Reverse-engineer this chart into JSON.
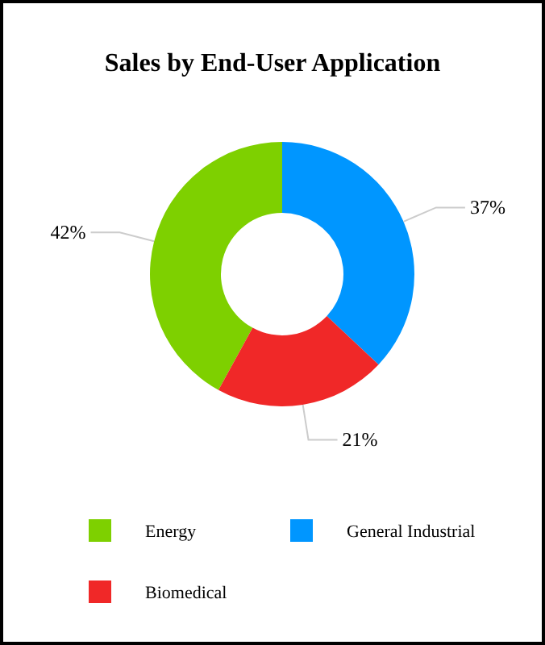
{
  "chart_data": {
    "type": "donut",
    "title": "Sales by End-User Application",
    "categories": [
      "Energy",
      "General Industrial",
      "Biomedical"
    ],
    "values": [
      42,
      37,
      21
    ],
    "colors": [
      "#7ed000",
      "#0096ff",
      "#f02828"
    ],
    "value_labels": [
      "42%",
      "37%",
      "21%"
    ],
    "legend": "bottom"
  }
}
